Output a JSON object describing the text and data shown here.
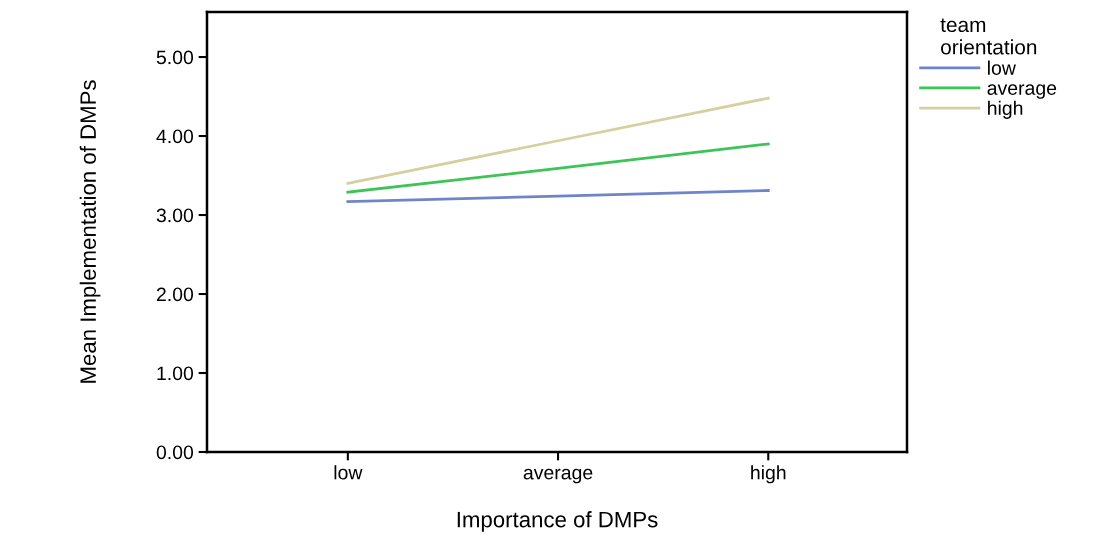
{
  "chart_data": {
    "type": "line",
    "xlabel": "Importance of DMPs",
    "ylabel": "Mean Implementation of DMPs",
    "legend_title": "team\norientation",
    "categories": [
      "low",
      "average",
      "high"
    ],
    "series": [
      {
        "name": "low",
        "color": "#7084c8",
        "values": [
          3.17,
          3.24,
          3.31
        ]
      },
      {
        "name": "average",
        "color": "#3cc456",
        "values": [
          3.29,
          3.59,
          3.9
        ]
      },
      {
        "name": "high",
        "color": "#d8cfa0",
        "values": [
          3.4,
          3.94,
          4.48
        ]
      }
    ],
    "ylim": [
      0,
      5.57
    ],
    "yticks": [
      {
        "value": 0,
        "label": "0.00"
      },
      {
        "value": 1,
        "label": "1.00"
      },
      {
        "value": 2,
        "label": "2.00"
      },
      {
        "value": 3,
        "label": "3.00"
      },
      {
        "value": 4,
        "label": "4.00"
      },
      {
        "value": 5,
        "label": "5.00"
      }
    ],
    "grid": false,
    "legend": "right",
    "marker": "none",
    "line_style": "solid"
  }
}
